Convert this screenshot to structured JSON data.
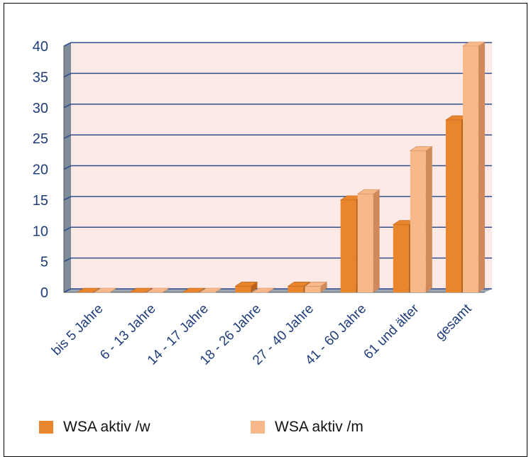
{
  "colors": {
    "series_w": "#E8852D",
    "series_w_dark": "#B8611A",
    "series_m": "#F8B98A",
    "series_m_dark": "#D0895A",
    "plot_bg": "#FDEAE6",
    "grid": "#2F4F8F",
    "axis_text": "#1F3D7A"
  },
  "chart_data": {
    "type": "bar",
    "categories": [
      "bis 5 Jahre",
      "6 - 13 Jahre",
      "14 - 17 Jahre",
      "18 - 26 Jahre",
      "27 - 40 Jahre",
      "41 - 60 Jahre",
      "61 und älter",
      "gesamt"
    ],
    "series": [
      {
        "name": "WSA aktiv /w",
        "values": [
          0,
          0,
          0,
          1,
          1,
          15,
          11,
          28
        ]
      },
      {
        "name": "WSA aktiv /m",
        "values": [
          0,
          0,
          0,
          0,
          1,
          16,
          23,
          40
        ]
      }
    ],
    "ylim": [
      0,
      40
    ],
    "yticks": [
      0,
      5,
      10,
      15,
      20,
      25,
      30,
      35,
      40
    ],
    "grid": true,
    "legend": "bottom",
    "style": "3d-column"
  },
  "legend": {
    "items": [
      {
        "label": "WSA aktiv /w"
      },
      {
        "label": "WSA aktiv /m"
      }
    ]
  }
}
